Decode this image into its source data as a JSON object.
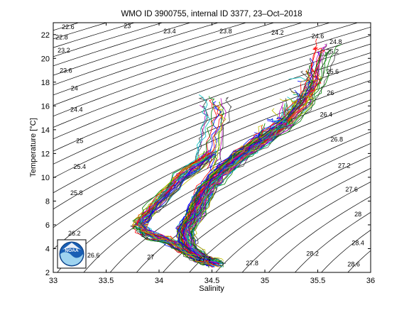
{
  "chart_data": {
    "type": "line",
    "title": "WMO ID 3900755, internal ID 3377, 23–Oct–2018",
    "xlabel": "Salinity",
    "ylabel": "Temperature [°C]",
    "xlim": [
      33,
      36
    ],
    "ylim": [
      2,
      23
    ],
    "x_ticks": [
      33,
      33.5,
      34,
      34.5,
      35,
      35.5,
      36
    ],
    "x_tick_labels": [
      "33",
      "33.5",
      "34",
      "34.5",
      "35",
      "35.5",
      "36"
    ],
    "y_ticks": [
      2,
      4,
      6,
      8,
      10,
      12,
      14,
      16,
      18,
      20,
      22
    ],
    "y_tick_labels": [
      "2",
      "4",
      "6",
      "8",
      "10",
      "12",
      "14",
      "16",
      "18",
      "20",
      "22"
    ],
    "grid": false,
    "legend": "none",
    "isopycnal_labels": [
      {
        "value": "22.6",
        "s": 33.14,
        "t": 22.45
      },
      {
        "value": "22.8",
        "s": 33.08,
        "t": 21.6
      },
      {
        "value": "23",
        "s": 33.7,
        "t": 22.55
      },
      {
        "value": "23.2",
        "s": 33.1,
        "t": 20.5
      },
      {
        "value": "23.4",
        "s": 34.1,
        "t": 22.1
      },
      {
        "value": "23.6",
        "s": 33.12,
        "t": 18.8
      },
      {
        "value": "23.8",
        "s": 34.63,
        "t": 22.1
      },
      {
        "value": "24",
        "s": 33.2,
        "t": 17.3
      },
      {
        "value": "24.2",
        "s": 35.12,
        "t": 22.0
      },
      {
        "value": "24.4",
        "s": 33.22,
        "t": 15.5
      },
      {
        "value": "24.6",
        "s": 35.5,
        "t": 21.7
      },
      {
        "value": "24.8",
        "s": 35.67,
        "t": 21.2
      },
      {
        "value": "25",
        "s": 33.25,
        "t": 12.9
      },
      {
        "value": "25.2",
        "s": 35.64,
        "t": 20.4
      },
      {
        "value": "25.4",
        "s": 33.25,
        "t": 10.7
      },
      {
        "value": "25.6",
        "s": 35.64,
        "t": 18.7
      },
      {
        "value": "25.8",
        "s": 33.22,
        "t": 8.5
      },
      {
        "value": "26",
        "s": 35.62,
        "t": 16.9
      },
      {
        "value": "26.2",
        "s": 33.2,
        "t": 5.1
      },
      {
        "value": "26.4",
        "s": 35.58,
        "t": 15.1
      },
      {
        "value": "26.6",
        "s": 33.38,
        "t": 3.25
      },
      {
        "value": "26.8",
        "s": 35.68,
        "t": 13.0
      },
      {
        "value": "27",
        "s": 33.92,
        "t": 3.1
      },
      {
        "value": "27.2",
        "s": 35.75,
        "t": 10.8
      },
      {
        "value": "27.4",
        "s": 34.43,
        "t": 2.95
      },
      {
        "value": "27.6",
        "s": 35.82,
        "t": 8.8
      },
      {
        "value": "27.8",
        "s": 34.88,
        "t": 2.6
      },
      {
        "value": "28",
        "s": 35.88,
        "t": 6.7
      },
      {
        "value": "28.2",
        "s": 35.45,
        "t": 3.4
      },
      {
        "value": "28.4",
        "s": 35.88,
        "t": 4.3
      },
      {
        "value": "28.6",
        "s": 35.84,
        "t": 2.5
      }
    ],
    "series_colors": [
      "#0000ff",
      "#008000",
      "#ff0000",
      "#00bfbf",
      "#bf00bf",
      "#bfbf00",
      "#404040"
    ],
    "profile_count": 120,
    "profile_shape": {
      "description_points_s_t": [
        [
          35.55,
          20.5
        ],
        [
          35.5,
          18.0
        ],
        [
          35.4,
          16.5
        ],
        [
          35.2,
          14.5
        ],
        [
          35.0,
          13.2
        ],
        [
          34.8,
          12.0
        ],
        [
          34.6,
          10.5
        ],
        [
          34.45,
          9.0
        ],
        [
          34.35,
          7.0
        ],
        [
          34.25,
          5.5
        ],
        [
          34.28,
          4.2
        ],
        [
          34.4,
          3.2
        ],
        [
          34.55,
          2.75
        ]
      ],
      "branch_points_s_t": [
        [
          34.5,
          12.0
        ],
        [
          34.2,
          10.0
        ],
        [
          33.95,
          7.5
        ],
        [
          33.8,
          6.0
        ],
        [
          33.9,
          5.2
        ],
        [
          34.1,
          4.6
        ],
        [
          34.3,
          3.6
        ],
        [
          34.5,
          2.8
        ]
      ],
      "spike_points_s_t": [
        [
          34.45,
          11.0
        ],
        [
          34.5,
          13.5
        ],
        [
          34.55,
          15.5
        ],
        [
          34.5,
          16.5
        ]
      ]
    }
  },
  "logo": {
    "name": "NOAA",
    "text": "NOAA"
  }
}
